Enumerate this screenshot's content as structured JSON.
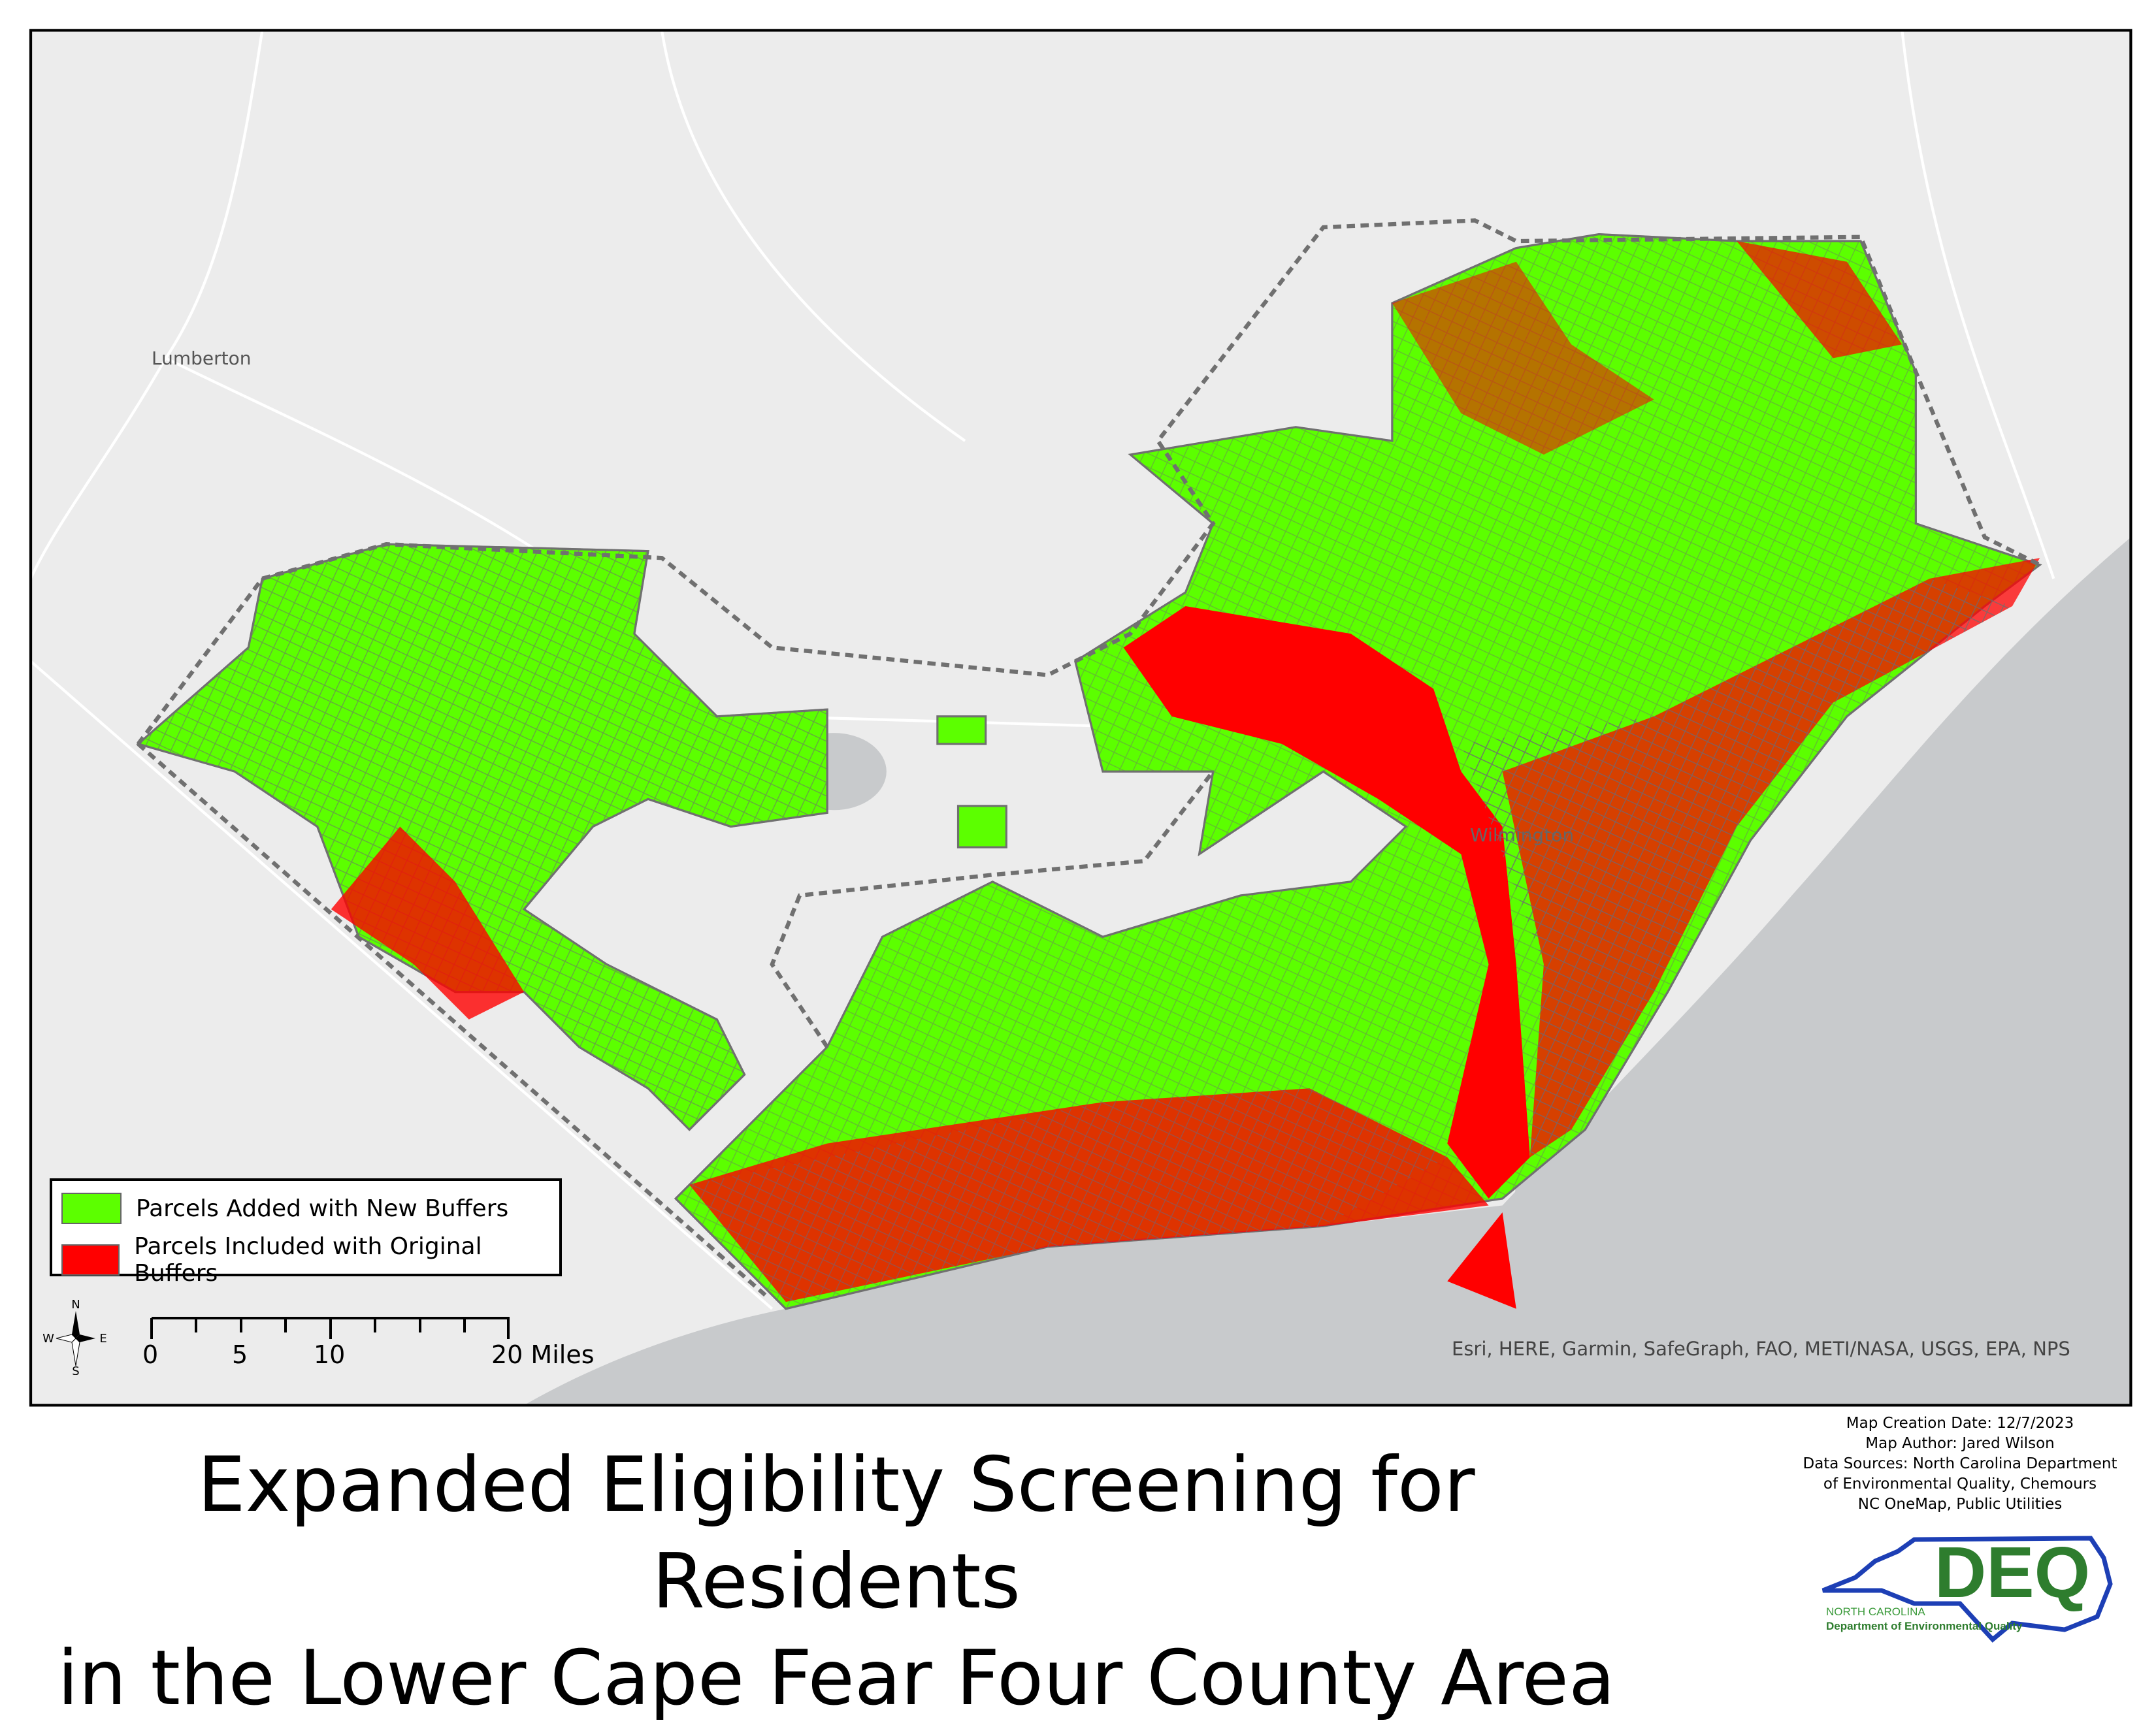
{
  "title": {
    "line1": "Expanded Eligibility Screening for Residents",
    "line2": "in the Lower Cape Fear Four County Area"
  },
  "legend": {
    "items": [
      {
        "label": "Parcels Added with New Buffers",
        "color": "#5cff00"
      },
      {
        "label": "Parcels Included with Original Buffers",
        "color": "#ff0000"
      }
    ]
  },
  "north_arrow": {
    "n": "N",
    "s": "S",
    "e": "E",
    "w": "W"
  },
  "scale_bar": {
    "labels": [
      "0",
      "5",
      "10",
      "20 Miles"
    ]
  },
  "places": {
    "lumberton": "Lumberton",
    "wilmington": "Wilmington"
  },
  "attribution": "Esri, HERE, Garmin, SafeGraph, FAO, METI/NASA, USGS, EPA, NPS",
  "metadata": {
    "date": "Map Creation Date: 12/7/2023",
    "author": "Map Author: Jared Wilson",
    "sources1": "Data Sources: North Carolina Department",
    "sources2": "of Environmental Quality, Chemours",
    "sources3": "NC OneMap, Public Utilities"
  },
  "logo": {
    "text": "DEQ",
    "sub1": "NORTH CAROLINA",
    "sub2": "Department of Environmental Quality"
  },
  "colors": {
    "ocean": "#c8cacc",
    "land": "#ececec",
    "parcel_outline": "#707070",
    "boundary": "#707070"
  }
}
